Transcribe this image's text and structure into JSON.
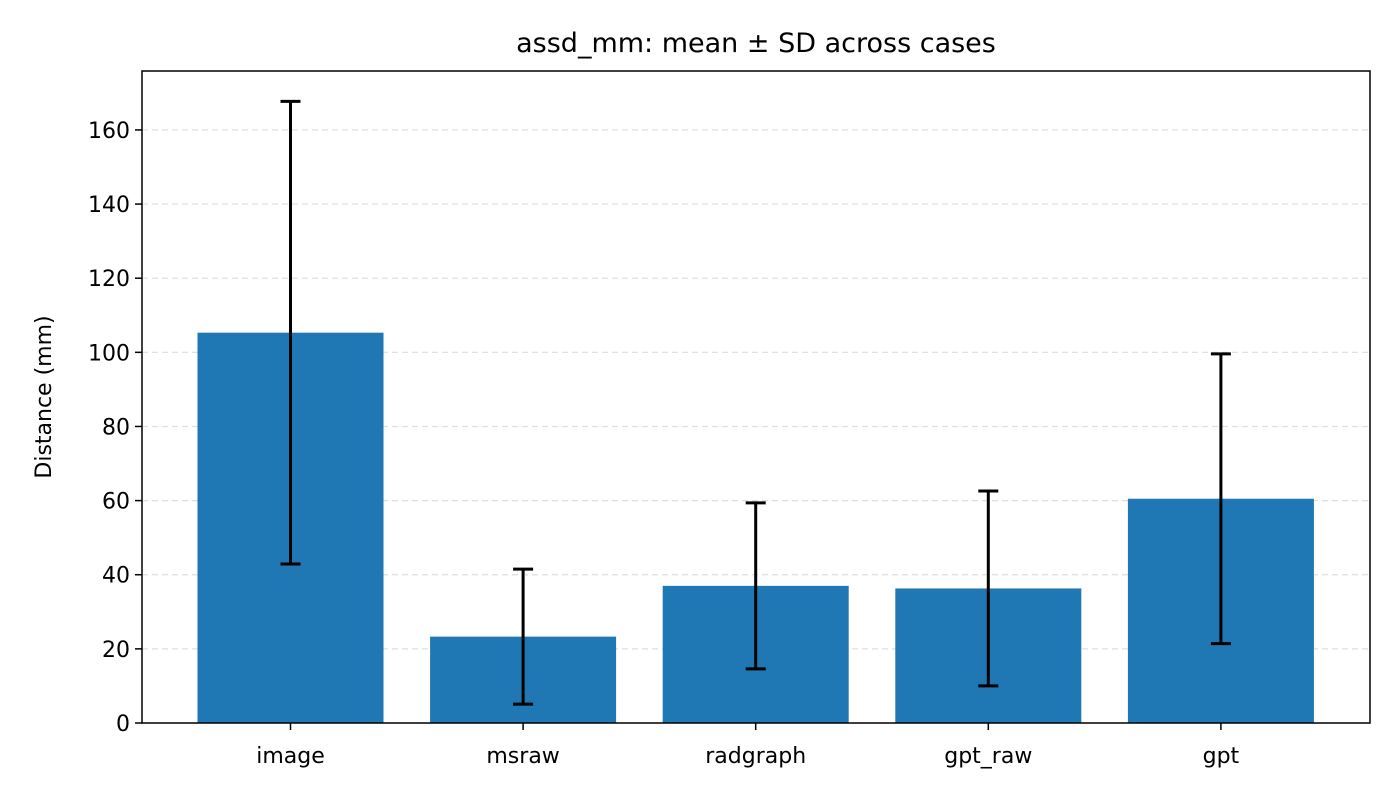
{
  "chart_data": {
    "type": "bar",
    "title": "assd_mm: mean ± SD across cases",
    "xlabel": "",
    "ylabel": "Distance (mm)",
    "categories": [
      "image",
      "msraw",
      "radgraph",
      "gpt_raw",
      "gpt"
    ],
    "values": [
      105.3,
      23.3,
      37.0,
      36.3,
      60.5
    ],
    "error": [
      62.4,
      18.2,
      22.4,
      26.3,
      39.1
    ],
    "ylim": [
      0,
      175.9
    ],
    "yticks": [
      0,
      20,
      40,
      60,
      80,
      100,
      120,
      140,
      160
    ],
    "grid": "y-dashed",
    "colors": {
      "bar": "#1f77b4",
      "errorbar": "#000000",
      "grid": "#dddddd"
    }
  }
}
